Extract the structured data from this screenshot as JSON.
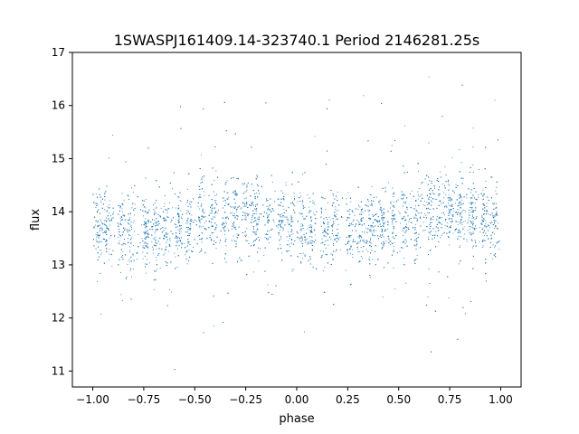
{
  "chart_data": {
    "type": "scatter",
    "title": "1SWASPJ161409.14-323740.1 Period 2146281.25s",
    "xlabel": "phase",
    "ylabel": "flux",
    "xlim": [
      -1.1,
      1.1
    ],
    "ylim": [
      10.7,
      17.0
    ],
    "xticks": [
      -1.0,
      -0.75,
      -0.5,
      -0.25,
      0.0,
      0.25,
      0.5,
      0.75,
      1.0
    ],
    "xtick_labels": [
      "−1.00",
      "−0.75",
      "−0.50",
      "−0.25",
      "0.00",
      "0.25",
      "0.50",
      "0.75",
      "1.00"
    ],
    "yticks": [
      11,
      12,
      13,
      14,
      15,
      16,
      17
    ],
    "ytick_labels": [
      "11",
      "12",
      "13",
      "14",
      "15",
      "16",
      "17"
    ],
    "grid": false,
    "legend": "none",
    "point_color": "#1f77b4",
    "series": [
      {
        "phase_range": [
          -1.0,
          1.0
        ],
        "mean_flux": 13.8,
        "typical_scatter": 0.35,
        "flux_range": [
          11.0,
          16.7
        ],
        "approx_points": 14000,
        "clumps_at_phase": [
          -0.97,
          -0.93,
          -0.86,
          -0.81,
          -0.74,
          -0.69,
          -0.64,
          -0.58,
          -0.53,
          -0.47,
          -0.41,
          -0.35,
          -0.3,
          -0.25,
          -0.2,
          -0.14,
          -0.08,
          -0.03,
          0.03,
          0.07,
          0.14,
          0.19,
          0.26,
          0.31,
          0.36,
          0.42,
          0.47,
          0.53,
          0.59,
          0.65,
          0.7,
          0.75,
          0.8,
          0.86,
          0.92,
          0.97
        ]
      }
    ]
  }
}
